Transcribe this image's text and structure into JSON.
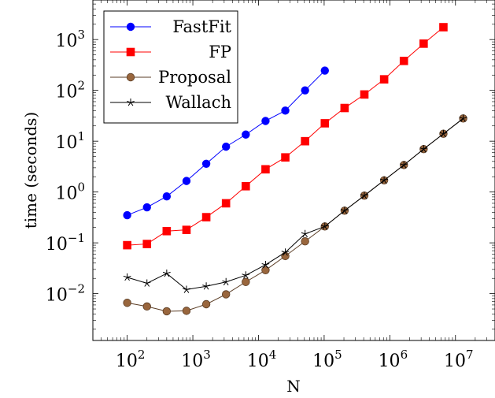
{
  "chart_data": {
    "type": "line",
    "xlabel": "N",
    "ylabel": "time (seconds)",
    "xscale": "log",
    "yscale": "log",
    "xlim": [
      30,
      40000000
    ],
    "ylim": [
      0.0012,
      6000
    ],
    "grid": false,
    "legend_position": "top-left",
    "x_ticks": [
      {
        "base": "10",
        "exp": "2"
      },
      {
        "base": "10",
        "exp": "3"
      },
      {
        "base": "10",
        "exp": "4"
      },
      {
        "base": "10",
        "exp": "5"
      },
      {
        "base": "10",
        "exp": "6"
      },
      {
        "base": "10",
        "exp": "7"
      }
    ],
    "y_ticks": [
      {
        "base": "10",
        "exp": "−2"
      },
      {
        "base": "10",
        "exp": "−1"
      },
      {
        "base": "10",
        "exp": "0"
      },
      {
        "base": "10",
        "exp": "1"
      },
      {
        "base": "10",
        "exp": "2"
      },
      {
        "base": "10",
        "exp": "3"
      }
    ],
    "series": [
      {
        "name": "FastFit",
        "color": "#0000ff",
        "marker": "circle",
        "x": [
          100,
          200,
          400,
          800,
          1600,
          3200,
          6400,
          12800,
          25600,
          51200,
          102400
        ],
        "y": [
          0.35,
          0.5,
          0.82,
          1.65,
          3.6,
          7.8,
          13.5,
          25,
          40,
          100,
          245
        ]
      },
      {
        "name": "FP",
        "color": "#ff0000",
        "marker": "square",
        "x": [
          100,
          200,
          400,
          800,
          1600,
          3200,
          6400,
          12800,
          25600,
          51200,
          102400,
          204800,
          409600,
          819200,
          1638400,
          3276800,
          6553600
        ],
        "y": [
          0.09,
          0.095,
          0.17,
          0.18,
          0.32,
          0.6,
          1.3,
          2.8,
          4.8,
          10,
          22.5,
          45,
          83,
          165,
          380,
          830,
          1750
        ]
      },
      {
        "name": "Proposal",
        "color": "#99663d",
        "marker": "circle",
        "x": [
          100,
          200,
          400,
          800,
          1600,
          3200,
          6400,
          12800,
          25600,
          51200,
          102400,
          204800,
          409600,
          819200,
          1638400,
          3276800,
          6553600,
          13107200
        ],
        "y": [
          0.0066,
          0.0056,
          0.0045,
          0.0046,
          0.0062,
          0.0097,
          0.017,
          0.029,
          0.055,
          0.107,
          0.21,
          0.43,
          0.85,
          1.7,
          3.4,
          7,
          14,
          28
        ]
      },
      {
        "name": "Wallach",
        "color": "#000000",
        "marker": "star",
        "x": [
          100,
          200,
          400,
          800,
          1600,
          3200,
          6400,
          12800,
          25600,
          51200,
          102400,
          204800,
          409600,
          819200,
          1638400,
          3276800,
          6553600,
          13107200
        ],
        "y": [
          0.021,
          0.016,
          0.025,
          0.012,
          0.014,
          0.017,
          0.023,
          0.037,
          0.065,
          0.15,
          0.21,
          0.43,
          0.85,
          1.7,
          3.4,
          7,
          14,
          28
        ]
      }
    ]
  }
}
